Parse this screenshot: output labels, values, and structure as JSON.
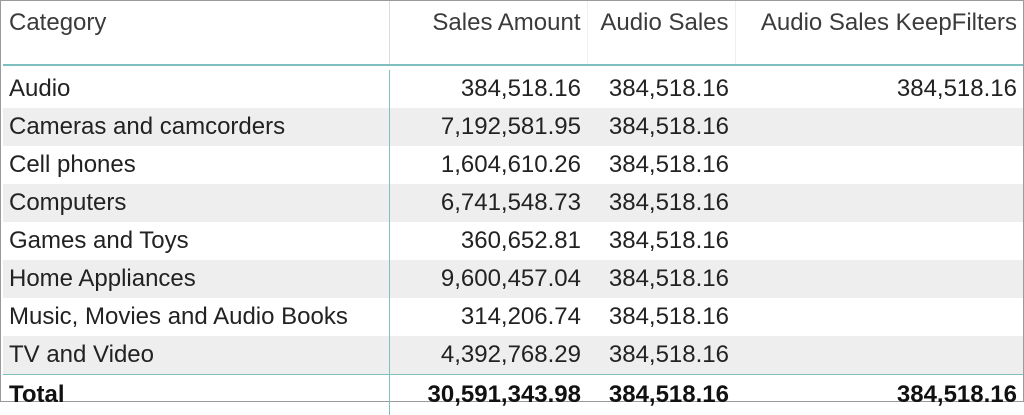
{
  "table": {
    "columns": [
      "Category",
      "Sales Amount",
      "Audio Sales",
      "Audio Sales KeepFilters"
    ],
    "rows": [
      [
        "Audio",
        "384,518.16",
        "384,518.16",
        "384,518.16"
      ],
      [
        "Cameras and camcorders",
        "7,192,581.95",
        "384,518.16",
        ""
      ],
      [
        "Cell phones",
        "1,604,610.26",
        "384,518.16",
        ""
      ],
      [
        "Computers",
        "6,741,548.73",
        "384,518.16",
        ""
      ],
      [
        "Games and Toys",
        "360,652.81",
        "384,518.16",
        ""
      ],
      [
        "Home Appliances",
        "9,600,457.04",
        "384,518.16",
        ""
      ],
      [
        "Music, Movies and Audio Books",
        "314,206.74",
        "384,518.16",
        ""
      ],
      [
        "TV and Video",
        "4,392,768.29",
        "384,518.16",
        ""
      ]
    ],
    "total": [
      "Total",
      "30,591,343.98",
      "384,518.16",
      "384,518.16"
    ]
  },
  "colors": {
    "header_rule": "#7fbfbf",
    "band": "#eeeeee",
    "text": "#222222"
  }
}
